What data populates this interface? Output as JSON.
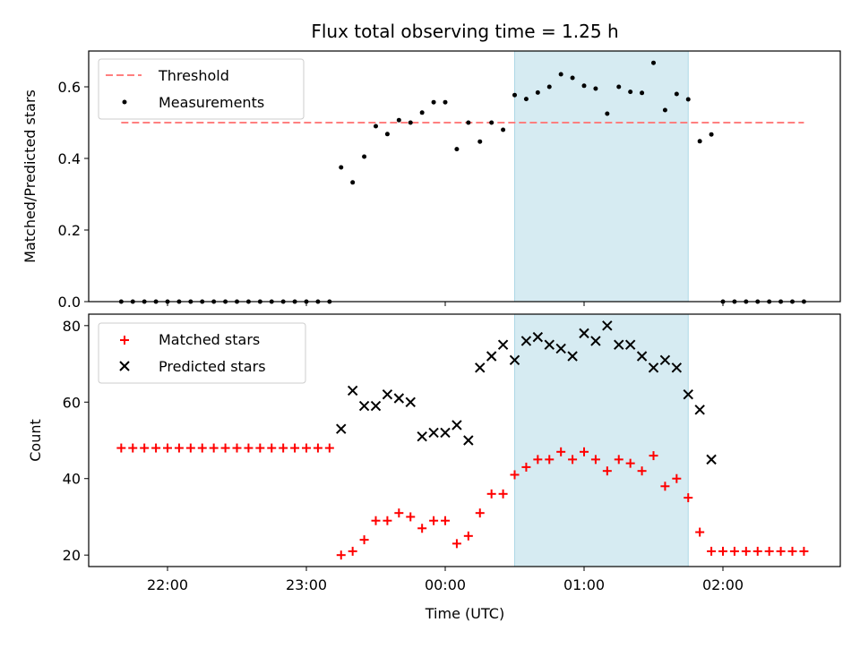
{
  "chart_data": {
    "title": "Flux total observing time = 1.25 h",
    "xlabel": "Time (UTC)",
    "x_ticks": [
      "22:00",
      "23:00",
      "00:00",
      "01:00",
      "02:00"
    ],
    "shaded_interval": [
      "00:30",
      "01:45"
    ],
    "top": {
      "type": "scatter",
      "ylabel": "Matched/Predicted stars",
      "ylim": [
        0,
        0.7
      ],
      "y_ticks": [
        "0.0",
        "0.2",
        "0.4",
        "0.6"
      ],
      "legend": [
        "Threshold",
        "Measurements"
      ],
      "threshold": {
        "value": 0.5,
        "x_range": [
          "21:40",
          "02:35"
        ],
        "color": "#ff7f7f"
      },
      "measurements": {
        "color": "#000000",
        "x": [
          "21:40",
          "21:45",
          "21:50",
          "21:55",
          "22:00",
          "22:05",
          "22:10",
          "22:15",
          "22:20",
          "22:25",
          "22:30",
          "22:35",
          "22:40",
          "22:45",
          "22:50",
          "22:55",
          "23:00",
          "23:05",
          "23:10",
          "23:15",
          "23:20",
          "23:25",
          "23:30",
          "23:35",
          "23:40",
          "23:45",
          "23:50",
          "23:55",
          "00:00",
          "00:05",
          "00:10",
          "00:15",
          "00:20",
          "00:25",
          "00:30",
          "00:35",
          "00:40",
          "00:45",
          "00:50",
          "00:55",
          "01:00",
          "01:05",
          "01:10",
          "01:15",
          "01:20",
          "01:25",
          "01:30",
          "01:35",
          "01:40",
          "01:45",
          "01:50",
          "01:55",
          "02:00",
          "02:05",
          "02:10",
          "02:15",
          "02:20",
          "02:25",
          "02:30",
          "02:35"
        ],
        "y": [
          0,
          0,
          0,
          0,
          0,
          0,
          0,
          0,
          0,
          0,
          0,
          0,
          0,
          0,
          0,
          0,
          0,
          0,
          0,
          0.375,
          0.333,
          0.405,
          0.49,
          0.468,
          0.507,
          0.5,
          0.528,
          0.557,
          0.557,
          0.426,
          0.5,
          0.447,
          0.5,
          0.48,
          0.577,
          0.566,
          0.584,
          0.6,
          0.635,
          0.625,
          0.603,
          0.595,
          0.525,
          0.6,
          0.586,
          0.583,
          0.667,
          0.535,
          0.58,
          0.565,
          0.448,
          0.467,
          0,
          0,
          0,
          0,
          0,
          0,
          0,
          0
        ]
      }
    },
    "bottom": {
      "type": "scatter",
      "ylabel": "Count",
      "ylim": [
        17,
        83
      ],
      "y_ticks": [
        "20",
        "40",
        "60",
        "80"
      ],
      "legend": [
        "Matched stars",
        "Predicted stars"
      ],
      "series": [
        {
          "name": "Matched stars",
          "marker": "+",
          "color": "#ff0000",
          "x": [
            "21:40",
            "21:45",
            "21:50",
            "21:55",
            "22:00",
            "22:05",
            "22:10",
            "22:15",
            "22:20",
            "22:25",
            "22:30",
            "22:35",
            "22:40",
            "22:45",
            "22:50",
            "22:55",
            "23:00",
            "23:05",
            "23:10",
            "23:15",
            "23:20",
            "23:25",
            "23:30",
            "23:35",
            "23:40",
            "23:45",
            "23:50",
            "23:55",
            "00:00",
            "00:05",
            "00:10",
            "00:15",
            "00:20",
            "00:25",
            "00:30",
            "00:35",
            "00:40",
            "00:45",
            "00:50",
            "00:55",
            "01:00",
            "01:05",
            "01:10",
            "01:15",
            "01:20",
            "01:25",
            "01:30",
            "01:35",
            "01:40",
            "01:45",
            "01:50",
            "01:55",
            "02:00",
            "02:05",
            "02:10",
            "02:15",
            "02:20",
            "02:25",
            "02:30",
            "02:35"
          ],
          "y": [
            48,
            48,
            48,
            48,
            48,
            48,
            48,
            48,
            48,
            48,
            48,
            48,
            48,
            48,
            48,
            48,
            48,
            48,
            48,
            20,
            21,
            24,
            29,
            29,
            31,
            30,
            27,
            29,
            29,
            23,
            25,
            31,
            36,
            36,
            41,
            43,
            45,
            45,
            47,
            45,
            47,
            45,
            42,
            45,
            44,
            42,
            46,
            38,
            40,
            35,
            26,
            21,
            21,
            21,
            21,
            21,
            21,
            21,
            21,
            21
          ]
        },
        {
          "name": "Predicted stars",
          "marker": "x",
          "color": "#000000",
          "x": [
            "23:15",
            "23:20",
            "23:25",
            "23:30",
            "23:35",
            "23:40",
            "23:45",
            "23:50",
            "23:55",
            "00:00",
            "00:05",
            "00:10",
            "00:15",
            "00:20",
            "00:25",
            "00:30",
            "00:35",
            "00:40",
            "00:45",
            "00:50",
            "00:55",
            "01:00",
            "01:05",
            "01:10",
            "01:15",
            "01:20",
            "01:25",
            "01:30",
            "01:35",
            "01:40",
            "01:45",
            "01:50",
            "01:55"
          ],
          "y": [
            53,
            63,
            59,
            59,
            62,
            61,
            60,
            51,
            52,
            52,
            54,
            50,
            69,
            72,
            75,
            71,
            76,
            77,
            75,
            74,
            72,
            78,
            76,
            80,
            75,
            75,
            72,
            69,
            71,
            69,
            62,
            58,
            45
          ]
        }
      ]
    }
  }
}
